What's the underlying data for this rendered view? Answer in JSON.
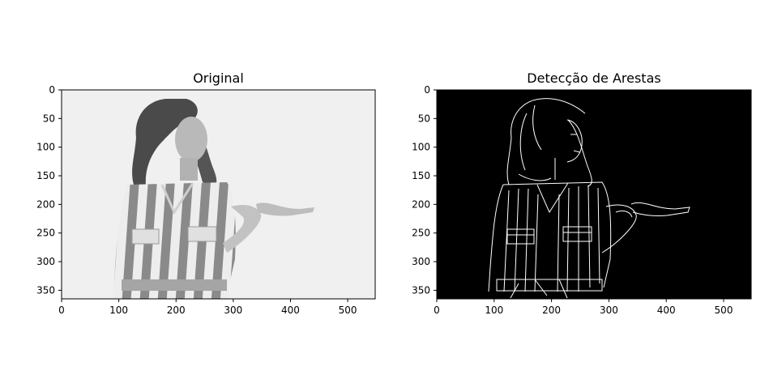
{
  "chart_data": [
    {
      "type": "image",
      "title": "Original",
      "xlim": [
        0,
        548
      ],
      "ylim": [
        365,
        0
      ],
      "xticks": [
        0,
        100,
        200,
        300,
        400,
        500
      ],
      "yticks": [
        0,
        50,
        100,
        150,
        200,
        250,
        300,
        350
      ],
      "colormap": "gray",
      "background": "#f0f0f0",
      "grid": false
    },
    {
      "type": "image",
      "title": "Detecção de Arestas",
      "xlim": [
        0,
        548
      ],
      "ylim": [
        365,
        0
      ],
      "xticks": [
        0,
        100,
        200,
        300,
        400,
        500
      ],
      "yticks": [
        0,
        50,
        100,
        150,
        200,
        250,
        300,
        350
      ],
      "colormap": "gray",
      "background": "#000000",
      "grid": false
    }
  ]
}
